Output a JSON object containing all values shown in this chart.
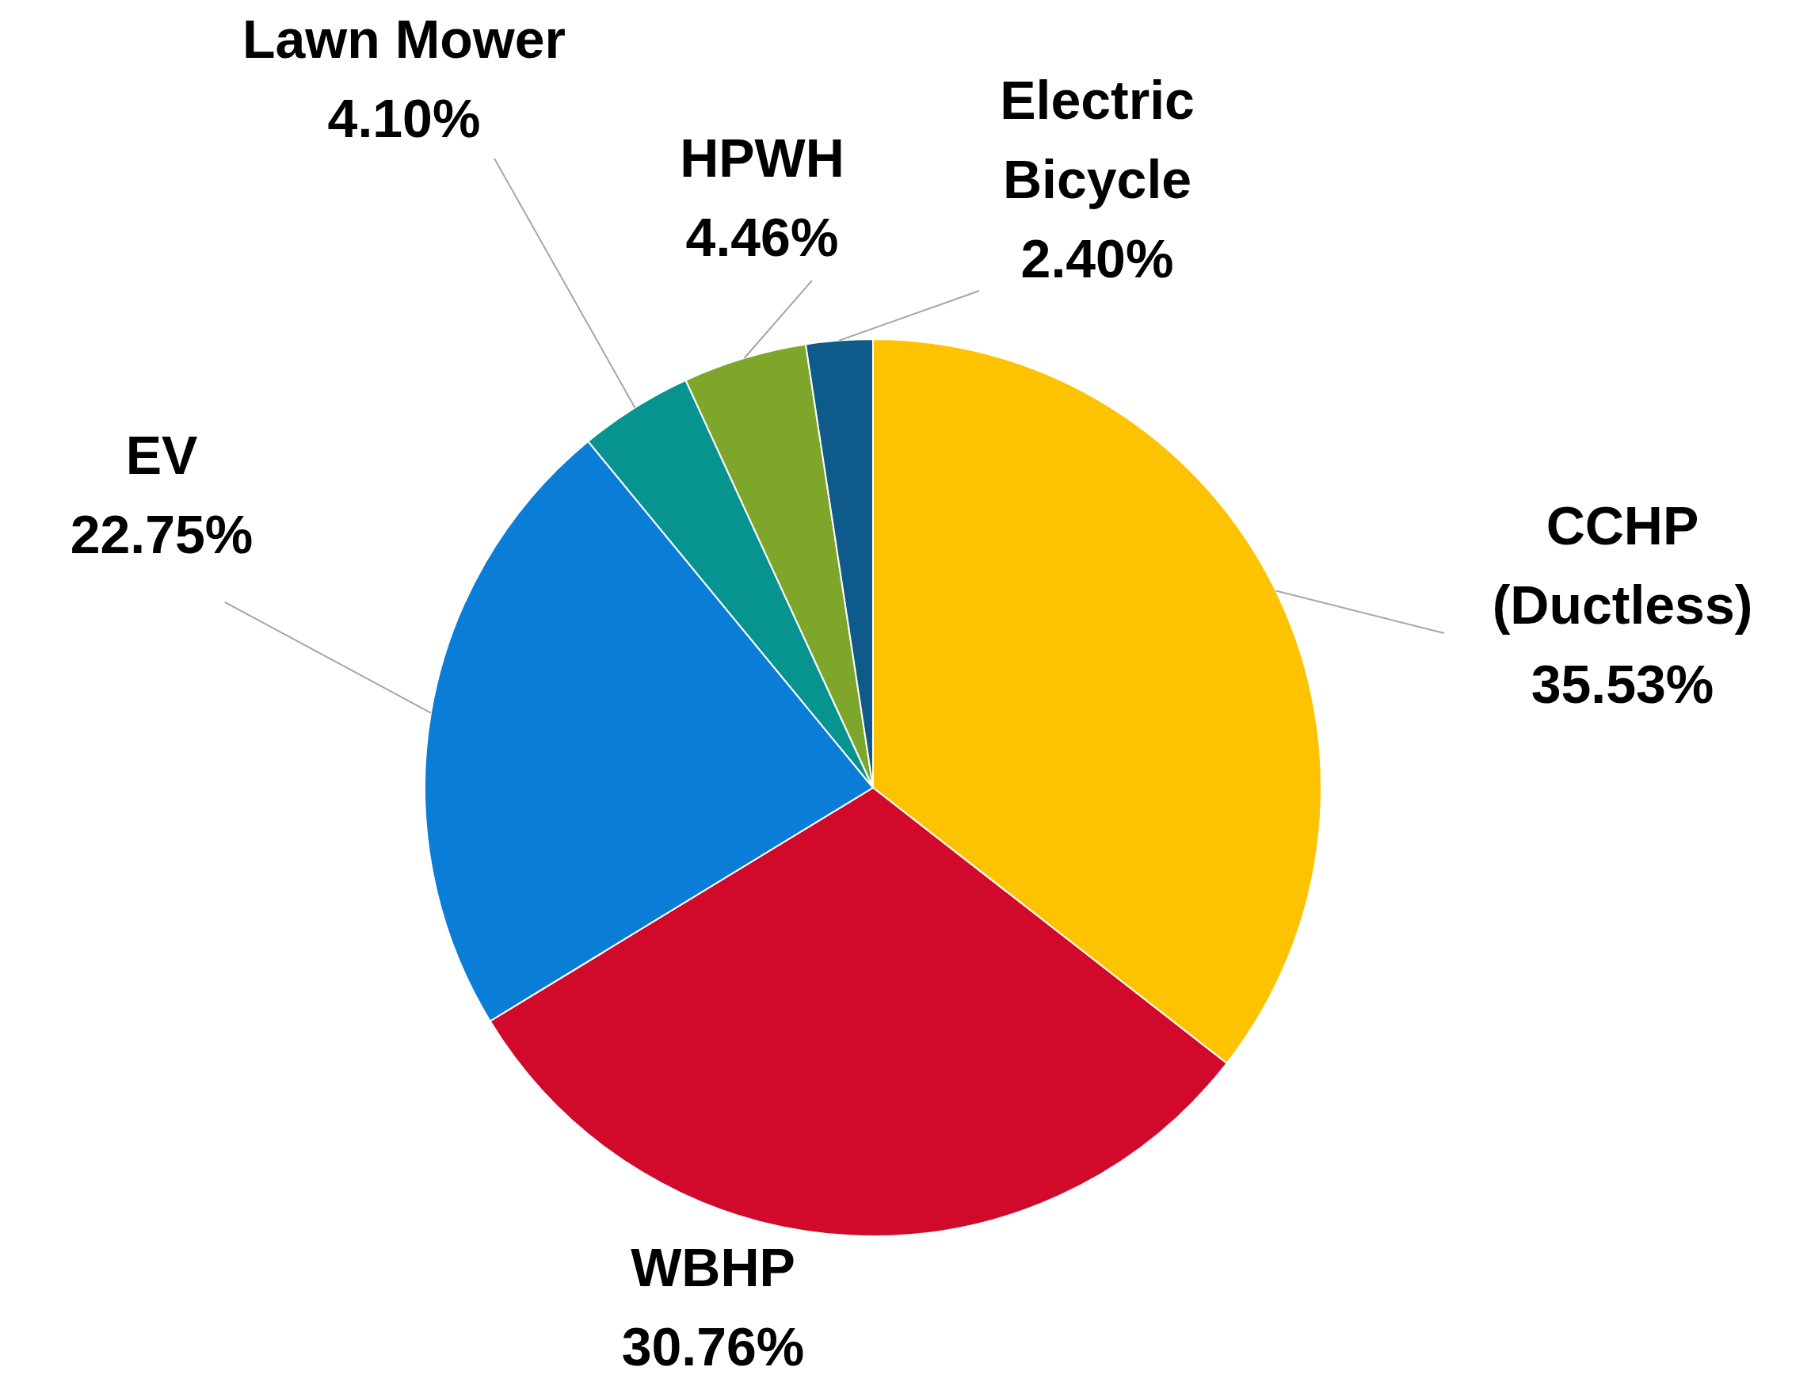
{
  "chart_data": {
    "type": "pie",
    "categories": [
      "CCHP (Ductless)",
      "WBHP",
      "EV",
      "Lawn Mower",
      "HPWH",
      "Electric Bicycle"
    ],
    "values": [
      35.53,
      30.76,
      22.75,
      4.1,
      4.46,
      2.4
    ],
    "value_labels": [
      "35.53%",
      "30.76%",
      "22.75%",
      "4.10%",
      "4.46%",
      "2.40%"
    ],
    "colors": [
      "#fdc300",
      "#d10a2c",
      "#0a7dd6",
      "#079490",
      "#7ea62a",
      "#0e5a8a"
    ],
    "legend": false
  }
}
